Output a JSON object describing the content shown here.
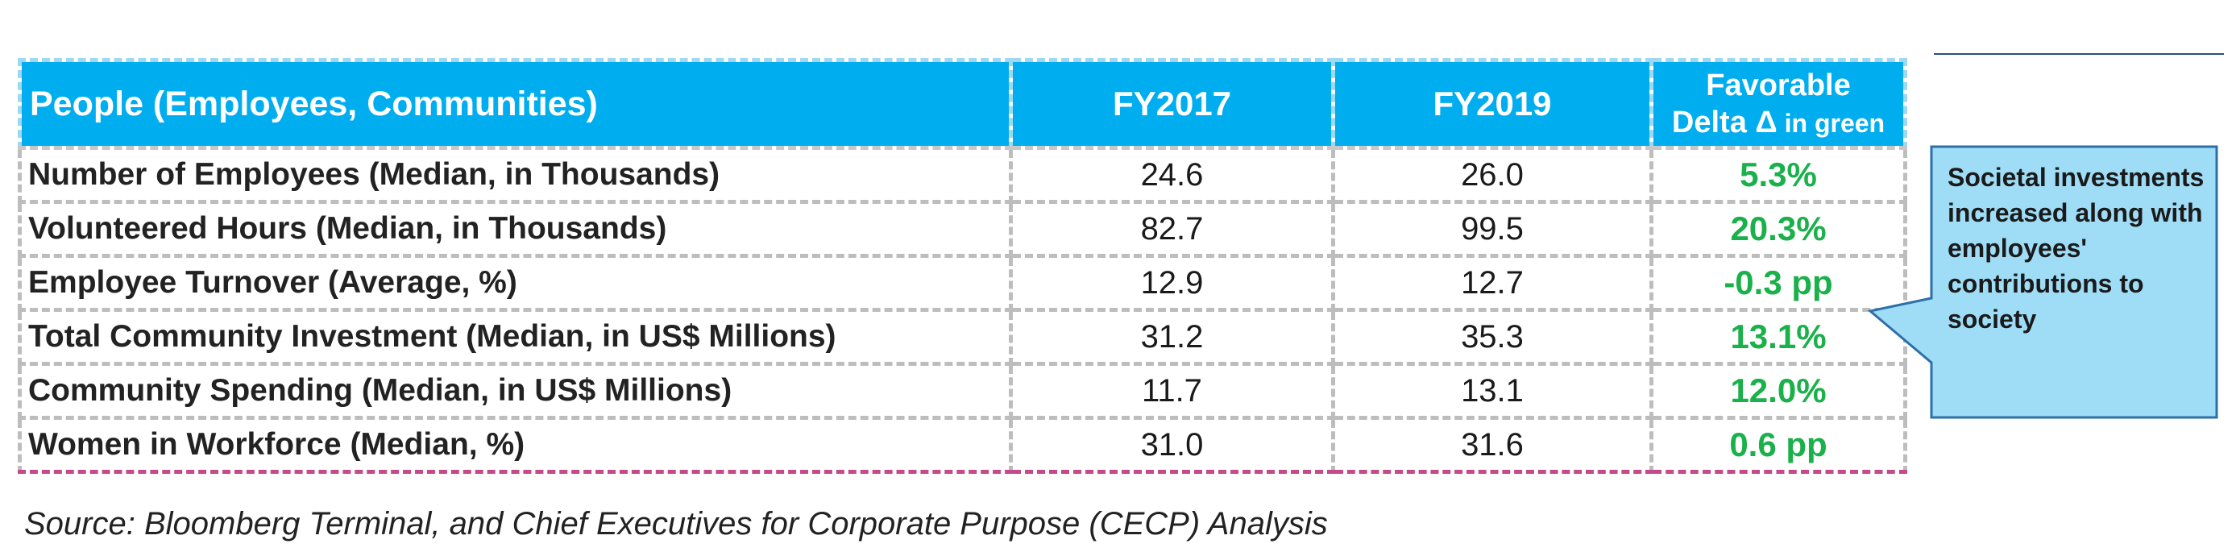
{
  "table": {
    "headers": {
      "label": "People (Employees, Communities)",
      "fy2017": "FY2017",
      "fy2019": "FY2019",
      "delta_line1": "Favorable",
      "delta_line2_main": "Delta Δ",
      "delta_line2_small": " in green"
    },
    "rows": [
      {
        "label": "Number of Employees (Median, in Thousands)",
        "fy2017": "24.6",
        "fy2019": "26.0",
        "delta": "5.3%"
      },
      {
        "label": "Volunteered Hours (Median, in Thousands)",
        "fy2017": "82.7",
        "fy2019": "99.5",
        "delta": "20.3%"
      },
      {
        "label": "Employee Turnover (Average, %)",
        "fy2017": "12.9",
        "fy2019": "12.7",
        "delta": "-0.3 pp"
      },
      {
        "label": "Total Community Investment (Median, in US$ Millions)",
        "fy2017": "31.2",
        "fy2019": "35.3",
        "delta": "13.1%"
      },
      {
        "label": "Community Spending (Median, in US$ Millions)",
        "fy2017": "11.7",
        "fy2019": "13.1",
        "delta": "12.0%"
      },
      {
        "label": "Women in Workforce (Median, %)",
        "fy2017": "31.0",
        "fy2019": "31.6",
        "delta": "0.6 pp"
      }
    ]
  },
  "callout": {
    "text": "Societal investments increased along with employees' contributions to society"
  },
  "source": "Source: Bloomberg Terminal, and Chief Executives for Corporate Purpose (CECP) Analysis",
  "colors": {
    "header_bg": "#00aeef",
    "header_text": "#ffffff",
    "delta_green": "#1ab04a",
    "callout_bg": "#9fdcf5",
    "callout_border": "#2d6fa8",
    "rule": "#2d4f7c"
  }
}
